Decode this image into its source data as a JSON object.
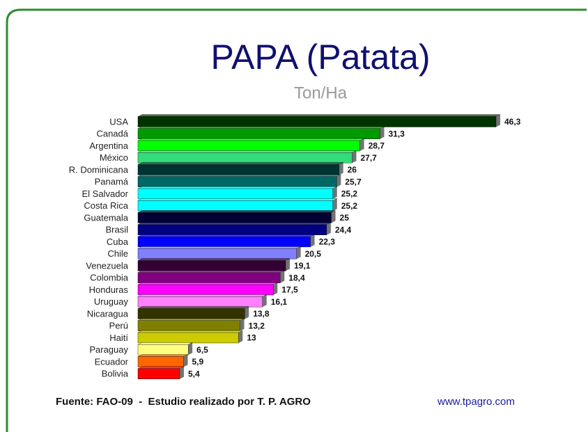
{
  "chart_data": {
    "type": "bar",
    "title": "PAPA (Patata)",
    "subtitle": "Ton/Ha",
    "categories": [
      "USA",
      "Canadá",
      "Argentina",
      "México",
      "R. Dominicana",
      "Panamá",
      "El Salvador",
      "Costa Rica",
      "Guatemala",
      "Brasil",
      "Cuba",
      "Chile",
      "Venezuela",
      "Colombia",
      "Honduras",
      "Uruguay",
      "Nicaragua",
      "Perú",
      "Haití",
      "Paraguay",
      "Ecuador",
      "Bolivia"
    ],
    "values": [
      46.3,
      31.3,
      28.7,
      27.7,
      26,
      25.7,
      25.2,
      25.2,
      25,
      24.4,
      22.3,
      20.5,
      19.1,
      18.4,
      17.5,
      16.1,
      13.8,
      13.2,
      13,
      6.5,
      5.9,
      5.4
    ],
    "value_labels": [
      "46,3",
      "31,3",
      "28,7",
      "27,7",
      "26",
      "25,7",
      "25,2",
      "25,2",
      "25",
      "24,4",
      "22,3",
      "20,5",
      "19,1",
      "18,4",
      "17,5",
      "16,1",
      "13,8",
      "13,2",
      "13",
      "6,5",
      "5,9",
      "5,4"
    ],
    "colors": [
      "#003300",
      "#009900",
      "#00ff00",
      "#33dd77",
      "#003333",
      "#006666",
      "#00ffff",
      "#00ffff",
      "#000033",
      "#000080",
      "#0000ff",
      "#8080ff",
      "#330033",
      "#800080",
      "#ff00ff",
      "#ff80ff",
      "#333300",
      "#808000",
      "#cccc00",
      "#ffff80",
      "#ff6600",
      "#ff0000"
    ],
    "footer": {
      "text": "Fuente: FAO-09  -  Estudio realizado por T. P. AGRO",
      "url": "www.tpagro.com"
    }
  }
}
